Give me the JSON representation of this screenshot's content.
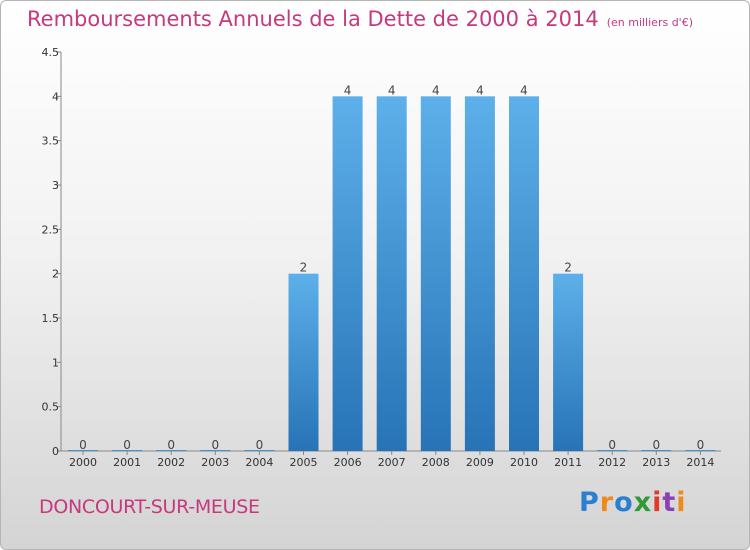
{
  "chart_data": {
    "type": "bar",
    "title": "Remboursements Annuels de la Dette de 2000 à 2014",
    "subtitle": "(en milliers d'€)",
    "categories": [
      "2000",
      "2001",
      "2002",
      "2003",
      "2004",
      "2005",
      "2006",
      "2007",
      "2008",
      "2009",
      "2010",
      "2011",
      "2012",
      "2013",
      "2014"
    ],
    "values": [
      0,
      0,
      0,
      0,
      0,
      2,
      4,
      4,
      4,
      4,
      4,
      2,
      0,
      0,
      0
    ],
    "data_labels": [
      "0",
      "0",
      "0",
      "0",
      "0",
      "2",
      "4",
      "4",
      "4",
      "4",
      "4",
      "2",
      "0",
      "0",
      "0"
    ],
    "ylim": [
      0,
      4.5
    ],
    "yticks": [
      0,
      0.5,
      1,
      1.5,
      2,
      2.5,
      3,
      3.5,
      4,
      4.5
    ],
    "ytick_labels": [
      "0",
      "0.5",
      "1",
      "1.5",
      "2",
      "2.5",
      "3",
      "3.5",
      "4",
      "4.5"
    ],
    "xlabel": "",
    "ylabel": "",
    "bar_color": "#3d95d8",
    "grid": false
  },
  "footer": {
    "location": "DONCOURT-SUR-MEUSE"
  },
  "logo": {
    "text": "Proxiti",
    "letters": [
      "P",
      "r",
      "o",
      "x",
      "i",
      "t",
      "i"
    ],
    "colors": [
      "#2a7fd0",
      "#ef8a1a",
      "#2a7fd0",
      "#2f9a3a",
      "#e23a2a",
      "#8a3fb4",
      "#ef8a1a"
    ]
  }
}
